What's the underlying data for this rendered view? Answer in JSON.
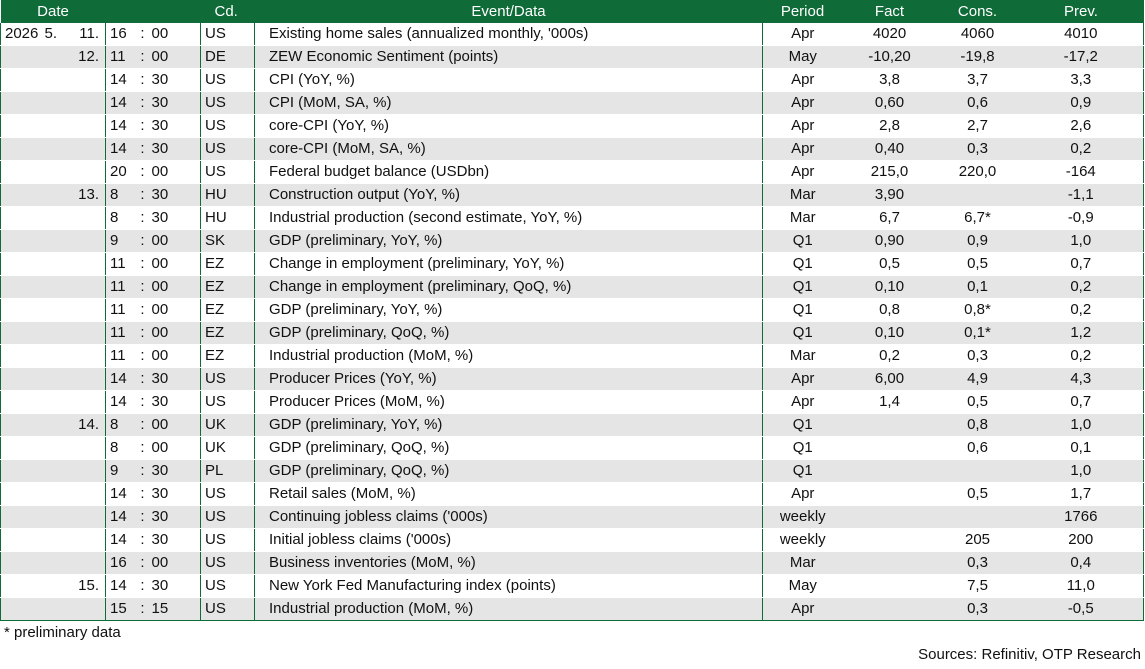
{
  "header": {
    "date": "Date",
    "cd": "Cd.",
    "event": "Event/Data",
    "period": "Period",
    "fact": "Fact",
    "cons": "Cons.",
    "prev": "Prev."
  },
  "rows": [
    {
      "year": "2026",
      "month": "5.",
      "day": "11.",
      "hour": "16",
      "min": "00",
      "cd": "US",
      "event": "Existing home sales (annualized monthly, '000s)",
      "period": "Apr",
      "fact": "4020",
      "cons": "4060",
      "prev": "4010"
    },
    {
      "year": "",
      "month": "",
      "day": "12.",
      "hour": "11",
      "min": "00",
      "cd": "DE",
      "event": "ZEW Economic Sentiment (points)",
      "period": "May",
      "fact": "-10,20",
      "cons": "-19,8",
      "prev": "-17,2"
    },
    {
      "year": "",
      "month": "",
      "day": "",
      "hour": "14",
      "min": "30",
      "cd": "US",
      "event": "CPI (YoY, %)",
      "period": "Apr",
      "fact": "3,8",
      "cons": "3,7",
      "prev": "3,3"
    },
    {
      "year": "",
      "month": "",
      "day": "",
      "hour": "14",
      "min": "30",
      "cd": "US",
      "event": "CPI (MoM, SA, %)",
      "period": "Apr",
      "fact": "0,60",
      "cons": "0,6",
      "prev": "0,9"
    },
    {
      "year": "",
      "month": "",
      "day": "",
      "hour": "14",
      "min": "30",
      "cd": "US",
      "event": "core-CPI (YoY, %)",
      "period": "Apr",
      "fact": "2,8",
      "cons": "2,7",
      "prev": "2,6"
    },
    {
      "year": "",
      "month": "",
      "day": "",
      "hour": "14",
      "min": "30",
      "cd": "US",
      "event": "core-CPI (MoM, SA, %)",
      "period": "Apr",
      "fact": "0,40",
      "cons": "0,3",
      "prev": "0,2"
    },
    {
      "year": "",
      "month": "",
      "day": "",
      "hour": "20",
      "min": "00",
      "cd": "US",
      "event": "Federal budget balance (USDbn)",
      "period": "Apr",
      "fact": "215,0",
      "cons": "220,0",
      "prev": "-164"
    },
    {
      "year": "",
      "month": "",
      "day": "13.",
      "hour": "8",
      "min": "30",
      "cd": "HU",
      "event": "Construction output (YoY, %)",
      "period": "Mar",
      "fact": "3,90",
      "cons": "",
      "prev": "-1,1"
    },
    {
      "year": "",
      "month": "",
      "day": "",
      "hour": "8",
      "min": "30",
      "cd": "HU",
      "event": "Industrial production (second estimate, YoY, %)",
      "period": "Mar",
      "fact": "6,7",
      "cons": "6,7*",
      "prev": "-0,9"
    },
    {
      "year": "",
      "month": "",
      "day": "",
      "hour": "9",
      "min": "00",
      "cd": "SK",
      "event": "GDP (preliminary, YoY, %)",
      "period": "Q1",
      "fact": "0,90",
      "cons": "0,9",
      "prev": "1,0"
    },
    {
      "year": "",
      "month": "",
      "day": "",
      "hour": "11",
      "min": "00",
      "cd": "EZ",
      "event": "Change in employment (preliminary, YoY, %)",
      "period": "Q1",
      "fact": "0,5",
      "cons": "0,5",
      "prev": "0,7"
    },
    {
      "year": "",
      "month": "",
      "day": "",
      "hour": "11",
      "min": "00",
      "cd": "EZ",
      "event": "Change in employment (preliminary, QoQ, %)",
      "period": "Q1",
      "fact": "0,10",
      "cons": "0,1",
      "prev": "0,2"
    },
    {
      "year": "",
      "month": "",
      "day": "",
      "hour": "11",
      "min": "00",
      "cd": "EZ",
      "event": "GDP (preliminary, YoY, %)",
      "period": "Q1",
      "fact": "0,8",
      "cons": "0,8*",
      "prev": "0,2"
    },
    {
      "year": "",
      "month": "",
      "day": "",
      "hour": "11",
      "min": "00",
      "cd": "EZ",
      "event": "GDP (preliminary, QoQ, %)",
      "period": "Q1",
      "fact": "0,10",
      "cons": "0,1*",
      "prev": "1,2"
    },
    {
      "year": "",
      "month": "",
      "day": "",
      "hour": "11",
      "min": "00",
      "cd": "EZ",
      "event": "Industrial production (MoM, %)",
      "period": "Mar",
      "fact": "0,2",
      "cons": "0,3",
      "prev": "0,2"
    },
    {
      "year": "",
      "month": "",
      "day": "",
      "hour": "14",
      "min": "30",
      "cd": "US",
      "event": "Producer Prices (YoY, %)",
      "period": "Apr",
      "fact": "6,00",
      "cons": "4,9",
      "prev": "4,3"
    },
    {
      "year": "",
      "month": "",
      "day": "",
      "hour": "14",
      "min": "30",
      "cd": "US",
      "event": "Producer Prices (MoM, %)",
      "period": "Apr",
      "fact": "1,4",
      "cons": "0,5",
      "prev": "0,7"
    },
    {
      "year": "",
      "month": "",
      "day": "14.",
      "hour": "8",
      "min": "00",
      "cd": "UK",
      "event": "GDP (preliminary, YoY, %)",
      "period": "Q1",
      "fact": "",
      "cons": "0,8",
      "prev": "1,0"
    },
    {
      "year": "",
      "month": "",
      "day": "",
      "hour": "8",
      "min": "00",
      "cd": "UK",
      "event": "GDP (preliminary, QoQ, %)",
      "period": "Q1",
      "fact": "",
      "cons": "0,6",
      "prev": "0,1"
    },
    {
      "year": "",
      "month": "",
      "day": "",
      "hour": "9",
      "min": "30",
      "cd": "PL",
      "event": "GDP (preliminary, QoQ, %)",
      "period": "Q1",
      "fact": "",
      "cons": "",
      "prev": "1,0"
    },
    {
      "year": "",
      "month": "",
      "day": "",
      "hour": "14",
      "min": "30",
      "cd": "US",
      "event": "Retail sales (MoM, %)",
      "period": "Apr",
      "fact": "",
      "cons": "0,5",
      "prev": "1,7"
    },
    {
      "year": "",
      "month": "",
      "day": "",
      "hour": "14",
      "min": "30",
      "cd": "US",
      "event": "Continuing jobless claims ('000s)",
      "period": "weekly",
      "fact": "",
      "cons": "",
      "prev": "1766"
    },
    {
      "year": "",
      "month": "",
      "day": "",
      "hour": "14",
      "min": "30",
      "cd": "US",
      "event": "Initial jobless claims ('000s)",
      "period": "weekly",
      "fact": "",
      "cons": "205",
      "prev": "200"
    },
    {
      "year": "",
      "month": "",
      "day": "",
      "hour": "16",
      "min": "00",
      "cd": "US",
      "event": "Business inventories (MoM, %)",
      "period": "Mar",
      "fact": "",
      "cons": "0,3",
      "prev": "0,4"
    },
    {
      "year": "",
      "month": "",
      "day": "15.",
      "hour": "14",
      "min": "30",
      "cd": "US",
      "event": "New York Fed Manufacturing index (points)",
      "period": "May",
      "fact": "",
      "cons": "7,5",
      "prev": "11,0"
    },
    {
      "year": "",
      "month": "",
      "day": "",
      "hour": "15",
      "min": "15",
      "cd": "US",
      "event": "Industrial production (MoM, %)",
      "period": "Apr",
      "fact": "",
      "cons": "0,3",
      "prev": "-0,5"
    }
  ],
  "time_separator": ":",
  "footnote": "* preliminary data",
  "sources": "Sources: Refinitiv, OTP Research",
  "colors": {
    "header_bg": "#0f6b38",
    "stripe": "#e5e5e5"
  }
}
